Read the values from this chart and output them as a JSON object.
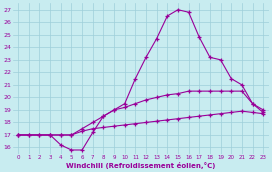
{
  "xlabel": "Windchill (Refroidissement éolien,°C)",
  "xlim": [
    -0.5,
    23.5
  ],
  "ylim": [
    15.5,
    27.5
  ],
  "yticks": [
    16,
    17,
    18,
    19,
    20,
    21,
    22,
    23,
    24,
    25,
    26,
    27
  ],
  "xticks": [
    0,
    1,
    2,
    3,
    4,
    5,
    6,
    7,
    8,
    9,
    10,
    11,
    12,
    13,
    14,
    15,
    16,
    17,
    18,
    19,
    20,
    21,
    22,
    23
  ],
  "background_color": "#c8ecf0",
  "grid_color": "#9ecfda",
  "line_color": "#990099",
  "lines": [
    {
      "x": [
        0,
        1,
        2,
        3,
        4,
        5,
        6,
        7,
        8,
        9,
        10,
        11,
        12,
        13,
        14,
        15,
        16,
        17,
        18,
        19,
        20,
        21,
        22,
        23
      ],
      "y": [
        17,
        17,
        17,
        17,
        17,
        17,
        17.3,
        17.5,
        17.6,
        17.7,
        17.8,
        17.9,
        18.0,
        18.1,
        18.2,
        18.3,
        18.4,
        18.5,
        18.6,
        18.7,
        18.8,
        18.9,
        18.8,
        18.7
      ]
    },
    {
      "x": [
        0,
        1,
        2,
        3,
        4,
        5,
        6,
        7,
        8,
        9,
        10,
        11,
        12,
        13,
        14,
        15,
        16,
        17,
        18,
        19,
        20,
        21,
        22,
        23
      ],
      "y": [
        17,
        17,
        17,
        17,
        17,
        17,
        17.5,
        18.0,
        18.5,
        19.0,
        19.2,
        19.5,
        19.8,
        20.0,
        20.2,
        20.3,
        20.5,
        20.5,
        20.5,
        20.5,
        20.5,
        20.5,
        19.5,
        19.0
      ]
    },
    {
      "x": [
        0,
        3,
        4,
        5,
        6,
        7,
        8,
        9,
        10,
        11,
        12,
        13,
        14,
        15,
        16,
        17,
        18,
        19,
        20,
        21,
        22,
        23
      ],
      "y": [
        17,
        17,
        16.2,
        15.8,
        15.8,
        17.2,
        18.5,
        19.0,
        19.5,
        21.5,
        23.2,
        24.7,
        26.5,
        27.0,
        26.8,
        24.8,
        23.2,
        23.0,
        21.5,
        21.0,
        19.5,
        18.8
      ]
    }
  ]
}
